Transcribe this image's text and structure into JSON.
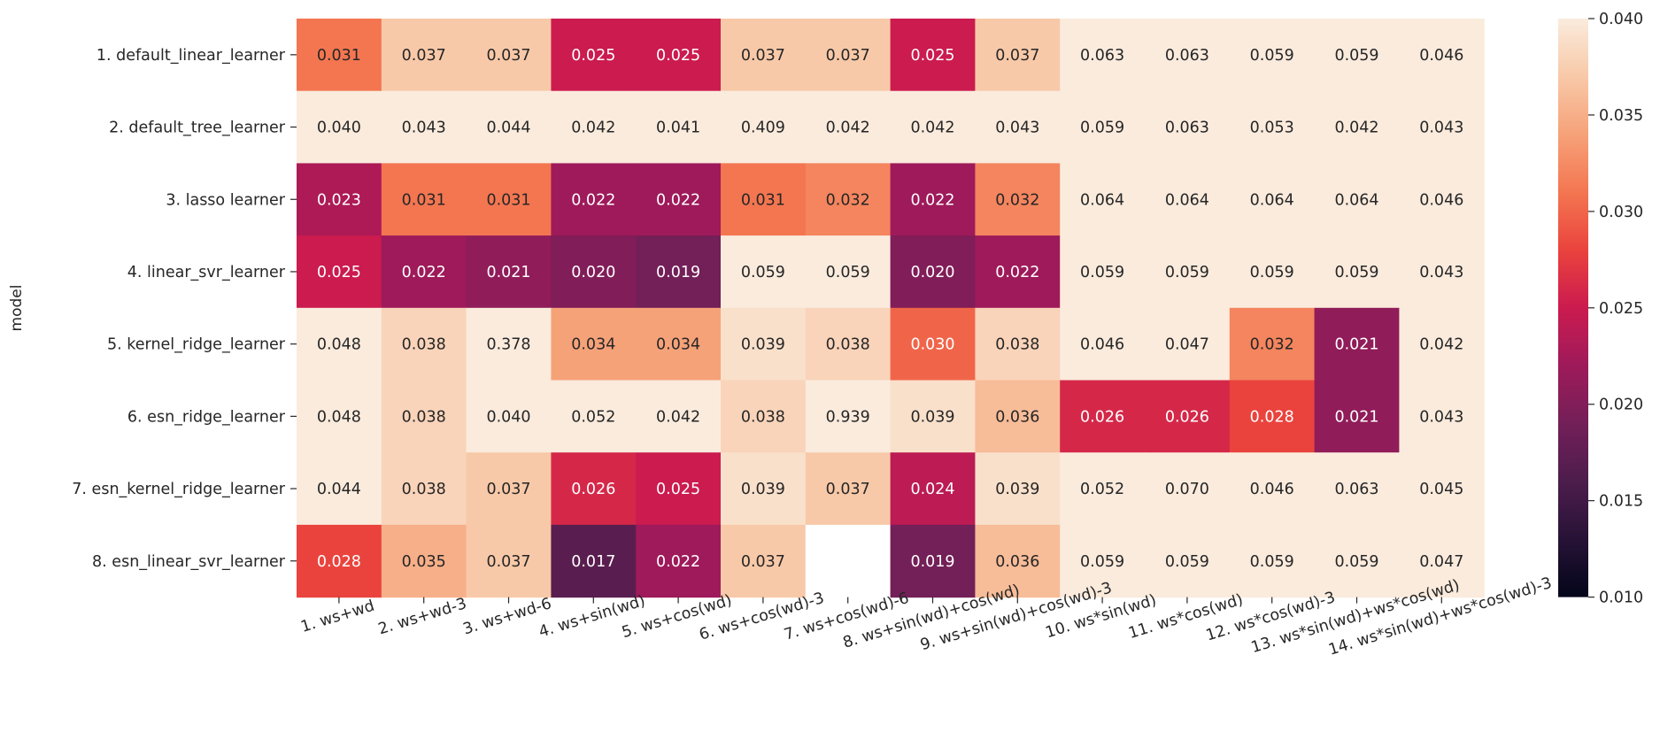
{
  "chart_data": {
    "type": "heatmap",
    "ylabel": "model",
    "xlabel": "",
    "rows": [
      "1. default_linear_learner",
      "2. default_tree_learner",
      "3. lasso learner",
      "4. linear_svr_learner",
      "5. kernel_ridge_learner",
      "6. esn_ridge_learner",
      "7. esn_kernel_ridge_learner",
      "8. esn_linear_svr_learner"
    ],
    "columns": [
      "1. ws+wd",
      "2. ws+wd-3",
      "3. ws+wd-6",
      "4. ws+sin(wd)",
      "5. ws+cos(wd)",
      "6. ws+cos(wd)-3",
      "7. ws+cos(wd)-6",
      "8. ws+sin(wd)+cos(wd)",
      "9. ws+sin(wd)+cos(wd)-3",
      "10. ws*sin(wd)",
      "11. ws*cos(wd)",
      "12. ws*cos(wd)-3",
      "13. ws*sin(wd)+ws*cos(wd)",
      "14. ws*sin(wd)+ws*cos(wd)-3"
    ],
    "values": [
      [
        0.031,
        0.037,
        0.037,
        0.025,
        0.025,
        0.037,
        0.037,
        0.025,
        0.037,
        0.063,
        0.063,
        0.059,
        0.059,
        0.046
      ],
      [
        0.04,
        0.043,
        0.044,
        0.042,
        0.041,
        0.409,
        0.042,
        0.042,
        0.043,
        0.059,
        0.063,
        0.053,
        0.042,
        0.043
      ],
      [
        0.023,
        0.031,
        0.031,
        0.022,
        0.022,
        0.031,
        0.032,
        0.022,
        0.032,
        0.064,
        0.064,
        0.064,
        0.064,
        0.046
      ],
      [
        0.025,
        0.022,
        0.021,
        0.02,
        0.019,
        0.059,
        0.059,
        0.02,
        0.022,
        0.059,
        0.059,
        0.059,
        0.059,
        0.043
      ],
      [
        0.048,
        0.038,
        0.378,
        0.034,
        0.034,
        0.039,
        0.038,
        0.03,
        0.038,
        0.046,
        0.047,
        0.032,
        0.021,
        0.042
      ],
      [
        0.048,
        0.038,
        0.04,
        0.052,
        0.042,
        0.038,
        0.939,
        0.039,
        0.036,
        0.026,
        0.026,
        0.028,
        0.021,
        0.043
      ],
      [
        0.044,
        0.038,
        0.037,
        0.026,
        0.025,
        0.039,
        0.037,
        0.024,
        0.039,
        0.052,
        0.07,
        0.046,
        0.063,
        0.045
      ],
      [
        0.028,
        0.035,
        0.037,
        0.017,
        0.022,
        0.037,
        null,
        0.019,
        0.036,
        0.059,
        0.059,
        0.059,
        0.059,
        0.047
      ]
    ],
    "vmin": 0.01,
    "vmax": 0.04,
    "colormap": "rocket",
    "colorbar_ticks": [
      "0.010",
      "0.015",
      "0.020",
      "0.025",
      "0.030",
      "0.035",
      "0.040"
    ],
    "grid": false,
    "legend": "colorbar-right"
  }
}
